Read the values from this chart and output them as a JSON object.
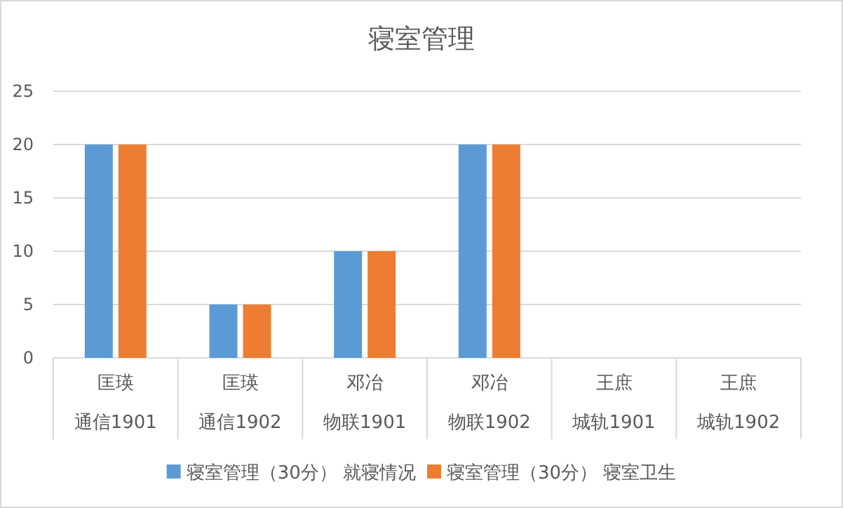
{
  "chart_data": {
    "type": "bar",
    "title": "寝室管理",
    "categories": [
      "匡瑛通信1901",
      "匡瑛通信1902",
      "邓冶物联1901",
      "邓冶物联1902",
      "王庶城轨1901",
      "王庶城轨1902"
    ],
    "series": [
      {
        "name": "寝室管理（30分） 就寝情况",
        "color": "#5b9bd5",
        "values": [
          20,
          5,
          10,
          20,
          0,
          0
        ]
      },
      {
        "name": "寝室管理（30分） 寝室卫生",
        "color": "#ed7d31",
        "values": [
          20,
          5,
          10,
          20,
          0,
          0
        ]
      }
    ],
    "ylim": [
      0,
      25
    ],
    "yticks": [
      0,
      5,
      10,
      15,
      20,
      25
    ],
    "grid": "y",
    "legend": "bottom"
  }
}
